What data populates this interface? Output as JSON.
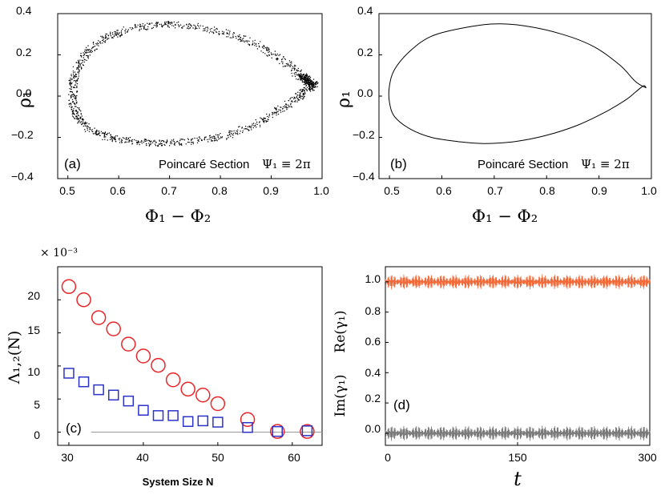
{
  "chart_data": [
    {
      "id": "a",
      "type": "scatter",
      "panel_label": "(a)",
      "annotation": "Poincaré Section",
      "annotation_math": "Ψ₁ ≡ 2π",
      "xlabel": "Φ₁ − Φ₂",
      "ylabel": "ρ₁",
      "xlim": [
        0.48,
        1.0
      ],
      "ylim": [
        -0.4,
        0.4
      ],
      "xticks": [
        "0.5",
        "0.6",
        "0.7",
        "0.8",
        "0.9",
        "1.0"
      ],
      "yticks": [
        "−0.4",
        "−0.2",
        "0.0",
        "0.2",
        "0.4"
      ],
      "curve_outer": [
        [
          0.98,
          0.05
        ],
        [
          0.96,
          0.09
        ],
        [
          0.93,
          0.16
        ],
        [
          0.88,
          0.24
        ],
        [
          0.82,
          0.3
        ],
        [
          0.75,
          0.34
        ],
        [
          0.69,
          0.35
        ],
        [
          0.63,
          0.33
        ],
        [
          0.58,
          0.29
        ],
        [
          0.54,
          0.22
        ],
        [
          0.52,
          0.14
        ],
        [
          0.51,
          0.06
        ],
        [
          0.51,
          -0.03
        ],
        [
          0.52,
          -0.1
        ],
        [
          0.54,
          -0.16
        ],
        [
          0.58,
          -0.2
        ],
        [
          0.63,
          -0.22
        ],
        [
          0.68,
          -0.23
        ],
        [
          0.74,
          -0.22
        ],
        [
          0.8,
          -0.2
        ],
        [
          0.86,
          -0.15
        ],
        [
          0.91,
          -0.08
        ],
        [
          0.95,
          -0.01
        ],
        [
          0.97,
          0.03
        ],
        [
          0.985,
          0.06
        ],
        [
          0.97,
          0.08
        ],
        [
          0.96,
          0.1
        ],
        [
          0.98,
          0.05
        ]
      ]
    },
    {
      "id": "b",
      "type": "line",
      "panel_label": "(b)",
      "annotation": "Poincaré Section",
      "annotation_math": "Ψ₁ ≡ 2π",
      "xlabel": "Φ₁ − Φ₂",
      "ylabel": "ρ₁",
      "xlim": [
        0.48,
        1.0
      ],
      "ylim": [
        -0.4,
        0.4
      ],
      "xticks": [
        "0.5",
        "0.6",
        "0.7",
        "0.8",
        "0.9",
        "1.0"
      ],
      "yticks": [
        "−0.4",
        "−0.2",
        "0.0",
        "0.2",
        "0.4"
      ],
      "curve": [
        [
          0.99,
          0.04
        ],
        [
          0.97,
          0.07
        ],
        [
          0.94,
          0.15
        ],
        [
          0.89,
          0.24
        ],
        [
          0.83,
          0.3
        ],
        [
          0.76,
          0.34
        ],
        [
          0.7,
          0.35
        ],
        [
          0.64,
          0.33
        ],
        [
          0.58,
          0.29
        ],
        [
          0.54,
          0.22
        ],
        [
          0.51,
          0.13
        ],
        [
          0.5,
          0.05
        ],
        [
          0.5,
          -0.03
        ],
        [
          0.51,
          -0.1
        ],
        [
          0.54,
          -0.16
        ],
        [
          0.58,
          -0.2
        ],
        [
          0.63,
          -0.22
        ],
        [
          0.68,
          -0.23
        ],
        [
          0.74,
          -0.22
        ],
        [
          0.8,
          -0.19
        ],
        [
          0.86,
          -0.14
        ],
        [
          0.91,
          -0.08
        ],
        [
          0.95,
          -0.02
        ],
        [
          0.97,
          0.02
        ],
        [
          0.985,
          0.05
        ],
        [
          0.99,
          0.04
        ]
      ]
    },
    {
      "id": "c",
      "type": "scatter",
      "panel_label": "(c)",
      "xlabel": "System Size N",
      "ylabel": "Λ₁,₂(N)",
      "scale_note": "× 10⁻³",
      "xlim": [
        28.5,
        64
      ],
      "ylim": [
        -2,
        25
      ],
      "xticks": [
        "30",
        "40",
        "50",
        "60"
      ],
      "yticks": [
        "0",
        "5",
        "10",
        "15",
        "20"
      ],
      "series": [
        {
          "name": "Λ1",
          "marker": "circle",
          "color": "#e8262a",
          "x": [
            30,
            32,
            34,
            36,
            38,
            40,
            42,
            44,
            46,
            48,
            50,
            54,
            58,
            62
          ],
          "y": [
            22.0,
            20.0,
            17.3,
            15.6,
            13.3,
            11.5,
            10.1,
            7.9,
            6.5,
            5.6,
            4.3,
            1.9,
            0.1,
            0.1
          ]
        },
        {
          "name": "Λ2",
          "marker": "square",
          "color": "#2b32c8",
          "x": [
            30,
            32,
            34,
            36,
            38,
            40,
            42,
            44,
            46,
            48,
            50,
            54,
            58,
            62
          ],
          "y": [
            8.9,
            7.6,
            6.4,
            5.6,
            4.7,
            3.3,
            2.5,
            2.5,
            1.6,
            1.7,
            1.5,
            0.7,
            0.1,
            0.2
          ]
        }
      ],
      "reference_line_y": 0
    },
    {
      "id": "d",
      "type": "line",
      "panel_label": "(d)",
      "xlabel": "t",
      "ylabel_top": "Re(γ₁)",
      "ylabel_bottom": "Im(γ₁)",
      "xlim": [
        0,
        300
      ],
      "ylim": [
        -0.08,
        1.1
      ],
      "xticks": [
        "0",
        "150",
        "300"
      ],
      "yticks": [
        "0.0",
        "0.2",
        "0.4",
        "0.6",
        "0.8",
        "1.0"
      ],
      "series": [
        {
          "name": "Re(γ1)",
          "color": "#f26a3a",
          "baseline": 1.0,
          "amplitude": 0.05
        },
        {
          "name": "Im(γ1)",
          "color": "#7a7a7a",
          "baseline": 0.0,
          "amplitude": 0.05
        }
      ]
    }
  ]
}
